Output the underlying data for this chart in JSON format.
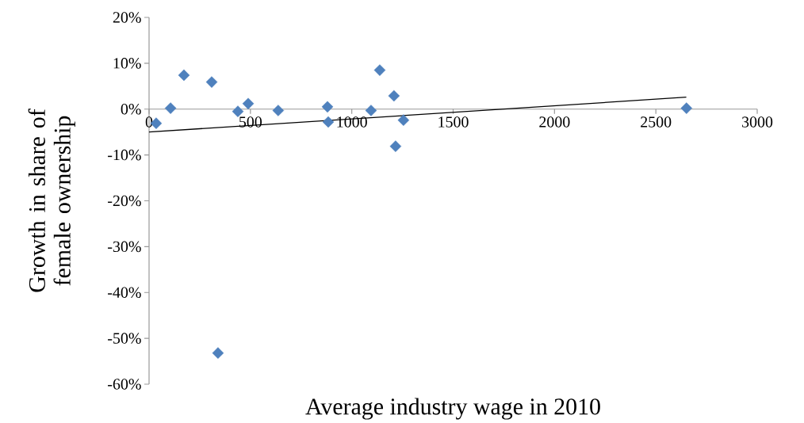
{
  "chart_data": {
    "type": "scatter",
    "xlabel": "Average industry wage in 2010",
    "ylabel": "Growth in share of female ownership",
    "xlim": [
      0,
      3000
    ],
    "xticks": [
      0,
      500,
      1000,
      1500,
      2000,
      2500,
      3000
    ],
    "ylim": [
      -60,
      20
    ],
    "yticks": [
      {
        "value": -60,
        "label": "-60%"
      },
      {
        "value": -50,
        "label": "-50%"
      },
      {
        "value": -40,
        "label": "-40%"
      },
      {
        "value": -30,
        "label": "-30%"
      },
      {
        "value": -20,
        "label": "-20%"
      },
      {
        "value": -10,
        "label": "-10%"
      },
      {
        "value": 0,
        "label": "0%"
      },
      {
        "value": 10,
        "label": "10%"
      },
      {
        "value": 20,
        "label": "20%"
      }
    ],
    "series": [
      {
        "type": "scatter",
        "color": "#4f81bd",
        "marker": "diamond",
        "x": [
          35,
          106,
          172,
          309,
          340,
          438,
          489,
          637,
          880,
          884,
          1095,
          1138,
          1208,
          1216,
          1255,
          2651
        ],
        "values": [
          -3.1,
          0.2,
          7.4,
          5.9,
          -53.2,
          -0.5,
          1.2,
          -0.3,
          0.5,
          -2.8,
          -0.3,
          8.5,
          2.9,
          -8.1,
          -2.4,
          0.2
        ]
      },
      {
        "type": "line",
        "color": "#000000",
        "marker": "none",
        "x": [
          0,
          2650
        ],
        "values": [
          -5.0,
          2.6
        ]
      }
    ]
  }
}
